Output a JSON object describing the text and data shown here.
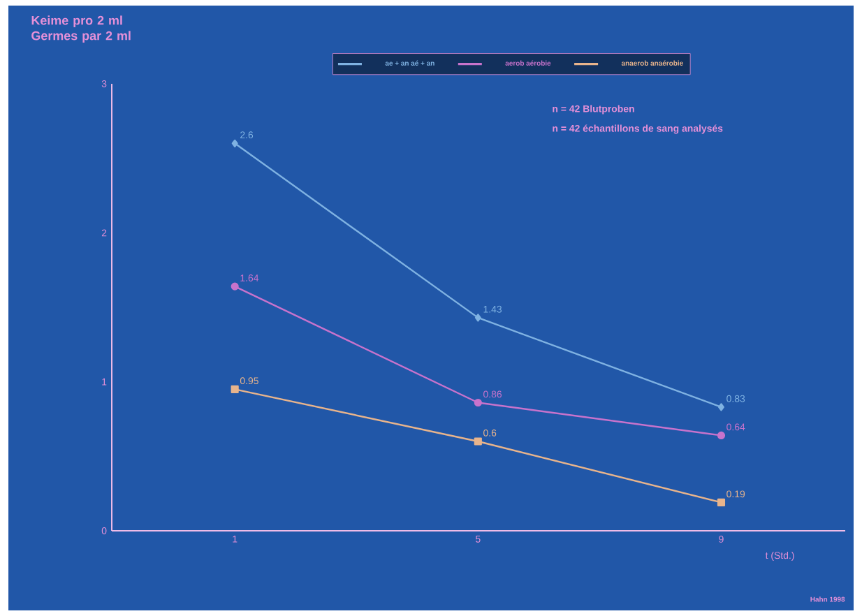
{
  "chart_data": {
    "type": "line",
    "ylabel": "Keime pro 2 ml Germes par 2 ml",
    "xlabel": "t (Std.)",
    "categories": [
      "1",
      "5",
      "9"
    ],
    "series": [
      {
        "name": "ae + an aé + an",
        "color": "#7fb2e2",
        "marker": "diamond",
        "values": [
          2.6,
          1.43,
          0.83
        ]
      },
      {
        "name": "aerob aérobie",
        "color": "#c873cc",
        "marker": "circle",
        "values": [
          1.64,
          0.86,
          0.64
        ]
      },
      {
        "name": "anaerob anaérobie",
        "color": "#e8b48c",
        "marker": "square",
        "values": [
          0.95,
          0.6,
          0.19
        ]
      }
    ],
    "ylim": [
      0,
      3
    ],
    "yticks": [
      0,
      1,
      2,
      3
    ],
    "data_labels": true,
    "legend": "top",
    "grid": false,
    "annotations": [
      "n = 42 Blutproben",
      "n = 42 échantillons de sang analysés",
      "Hahn 1998"
    ]
  }
}
